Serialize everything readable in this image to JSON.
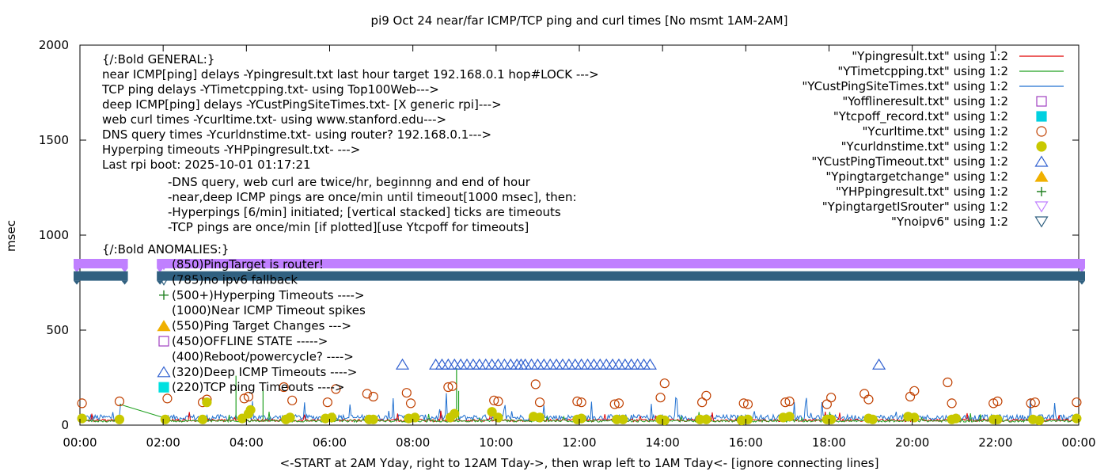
{
  "chart_data": {
    "type": "scatter",
    "title": "pi9 Oct 24  near/far ICMP/TCP ping and curl times [No msmt 1AM-2AM]",
    "xlabel": "<-START at 2AM Yday, right to 12AM Tday->, then wrap left to 1AM Tday<- [ignore connecting lines]",
    "ylabel": "msec",
    "xlim": [
      0,
      24
    ],
    "ylim": [
      0,
      2000
    ],
    "grid": false,
    "legend_position": "top-right",
    "x_ticks": [
      {
        "v": 0,
        "label": "00:00"
      },
      {
        "v": 2,
        "label": "02:00"
      },
      {
        "v": 4,
        "label": "04:00"
      },
      {
        "v": 6,
        "label": "06:00"
      },
      {
        "v": 8,
        "label": "08:00"
      },
      {
        "v": 10,
        "label": "10:00"
      },
      {
        "v": 12,
        "label": "12:00"
      },
      {
        "v": 14,
        "label": "14:00"
      },
      {
        "v": 16,
        "label": "16:00"
      },
      {
        "v": 18,
        "label": "18:00"
      },
      {
        "v": 20,
        "label": "20:00"
      },
      {
        "v": 22,
        "label": "22:00"
      },
      {
        "v": 24,
        "label": "00:00"
      }
    ],
    "y_ticks": [
      {
        "v": 0,
        "label": "0"
      },
      {
        "v": 500,
        "label": "500"
      },
      {
        "v": 1000,
        "label": "1000"
      },
      {
        "v": 1500,
        "label": "1500"
      },
      {
        "v": 2000,
        "label": "2000"
      }
    ],
    "notes_header": [
      "{/:Bold GENERAL:}",
      "near ICMP[ping] delays -Ypingresult.txt last hour target 192.168.0.1 hop#LOCK --->",
      "TCP ping delays -YTimetcpping.txt- using Top100Web--->",
      "deep ICMP[ping] delays -YCustPingSiteTimes.txt- [X generic rpi]--->",
      "web curl times -Ycurltime.txt- using www.stanford.edu--->",
      "DNS query times -Ycurldnstime.txt- using router? 192.168.0.1--->",
      "Hyperping timeouts -YHPpingresult.txt- --->",
      "Last rpi boot: 2025-10-01 01:17:21"
    ],
    "notes_indented": [
      "-DNS query, web curl are twice/hr, beginnng and end of hour",
      "-near,deep ICMP pings are once/min until timeout[1000 msec], then:",
      "  -Hyperpings [6/min] initiated; [vertical stacked] ticks are timeouts",
      "-TCP pings are once/min [if plotted][use Ytcpoff for timeouts]"
    ],
    "anomalies_header": "{/:Bold ANOMALIES:}",
    "anomalies": [
      {
        "marker": "tri-down",
        "color": "#c080ff",
        "text": "(850)PingTarget is router!"
      },
      {
        "marker": "tri-down",
        "color": "#306080",
        "text": "(785)no ipv6 fallback"
      },
      {
        "marker": "plus",
        "color": "#208020",
        "text": "(500+)Hyperping Timeouts ---->"
      },
      {
        "marker": "none",
        "color": "",
        "text": "(1000)Near ICMP Timeout spikes"
      },
      {
        "marker": "tri-up-filled",
        "color": "#f0b000",
        "text": "(550)Ping Target Changes --->"
      },
      {
        "marker": "square",
        "color": "#a040c0",
        "text": "(450)OFFLINE STATE ----->"
      },
      {
        "marker": "none",
        "color": "",
        "text": "(400)Reboot/powercycle? ---->"
      },
      {
        "marker": "tri-up",
        "color": "#3060d0",
        "text": "(320)Deep ICMP Timeouts ---->"
      },
      {
        "marker": "square-filled",
        "color": "#00e0e0",
        "text": "(220)TCP ping Timeouts ---->"
      }
    ],
    "legend": [
      {
        "label": "\"Ypingresult.txt\" using 1:2",
        "style": "line",
        "color": "#e00000"
      },
      {
        "label": "\"YTimetcpping.txt\" using 1:2",
        "style": "line",
        "color": "#20a020"
      },
      {
        "label": "\"YCustPingSiteTimes.txt\" using 1:2",
        "style": "line",
        "color": "#2070d0"
      },
      {
        "label": "\"Yofflineresult.txt\" using 1:2",
        "style": "square",
        "color": "#a040c0"
      },
      {
        "label": "\"Ytcpoff_record.txt\" using 1:2",
        "style": "square-filled",
        "color": "#00d0e0"
      },
      {
        "label": "\"Ycurltime.txt\" using 1:2",
        "style": "circle",
        "color": "#c04000"
      },
      {
        "label": "\"Ycurldnstime.txt\" using 1:2",
        "style": "circle-filled",
        "color": "#c8c800"
      },
      {
        "label": "\"YCustPingTimeout.txt\" using 1:2",
        "style": "tri-up",
        "color": "#3060d0"
      },
      {
        "label": "\"Ypingtargetchange\" using 1:2",
        "style": "tri-up-filled",
        "color": "#f0b000"
      },
      {
        "label": "\"YHPpingresult.txt\" using 1:2",
        "style": "plus",
        "color": "#208020"
      },
      {
        "label": "\"YpingtargetISrouter\" using 1:2",
        "style": "tri-down",
        "color": "#c080ff"
      },
      {
        "label": "\"Ynoipv6\" using 1:2",
        "style": "tri-down",
        "color": "#306080"
      }
    ],
    "series": [
      {
        "name": "\"YpingtargetISrouter\" using 1:2",
        "color": "#c080ff",
        "y": 850,
        "x_ranges": [
          [
            0,
            1.0
          ],
          [
            2.0,
            24
          ]
        ]
      },
      {
        "name": "\"Ynoipv6\" using 1:2",
        "color": "#306080",
        "y": 785,
        "x_ranges": [
          [
            0,
            1.0
          ],
          [
            2.0,
            24
          ]
        ]
      },
      {
        "name": "\"YCustPingTimeout.txt\" using 1:2",
        "color": "#3060d0",
        "y": 320,
        "x": [
          7.75,
          8.55,
          8.7,
          8.85,
          9.0,
          9.15,
          9.3,
          9.45,
          9.6,
          9.75,
          9.9,
          10.05,
          10.2,
          10.35,
          10.5,
          10.6,
          10.7,
          10.85,
          11.0,
          11.15,
          11.3,
          11.45,
          11.6,
          11.75,
          11.9,
          12.05,
          12.2,
          12.35,
          12.5,
          12.65,
          12.8,
          12.95,
          13.1,
          13.25,
          13.4,
          13.55,
          13.7,
          19.2
        ]
      },
      {
        "name": "\"Ycurltime.txt\" using 1:2",
        "color": "#c04000",
        "points": [
          [
            0.05,
            115
          ],
          [
            0.95,
            125
          ],
          [
            2.1,
            140
          ],
          [
            2.95,
            120
          ],
          [
            3.05,
            135
          ],
          [
            3.95,
            140
          ],
          [
            4.05,
            150
          ],
          [
            4.9,
            200
          ],
          [
            5.1,
            130
          ],
          [
            5.95,
            120
          ],
          [
            6.15,
            190
          ],
          [
            6.9,
            165
          ],
          [
            7.05,
            150
          ],
          [
            7.85,
            170
          ],
          [
            7.95,
            115
          ],
          [
            8.85,
            200
          ],
          [
            8.95,
            205
          ],
          [
            9.95,
            130
          ],
          [
            10.05,
            125
          ],
          [
            10.95,
            215
          ],
          [
            11.05,
            120
          ],
          [
            11.95,
            125
          ],
          [
            12.05,
            120
          ],
          [
            12.85,
            110
          ],
          [
            12.95,
            115
          ],
          [
            13.95,
            145
          ],
          [
            14.05,
            220
          ],
          [
            14.95,
            120
          ],
          [
            15.05,
            155
          ],
          [
            15.95,
            115
          ],
          [
            16.05,
            110
          ],
          [
            16.95,
            120
          ],
          [
            17.05,
            125
          ],
          [
            17.95,
            110
          ],
          [
            18.05,
            145
          ],
          [
            18.85,
            165
          ],
          [
            18.95,
            135
          ],
          [
            19.95,
            150
          ],
          [
            20.05,
            180
          ],
          [
            20.85,
            225
          ],
          [
            20.95,
            115
          ],
          [
            21.95,
            115
          ],
          [
            22.05,
            125
          ],
          [
            22.85,
            115
          ],
          [
            22.95,
            120
          ],
          [
            23.95,
            120
          ]
        ]
      },
      {
        "name": "\"Ycurldnstime.txt\" using 1:2",
        "color": "#c8c800",
        "points": [
          [
            0.05,
            35
          ],
          [
            0.95,
            30
          ],
          [
            2.05,
            30
          ],
          [
            2.95,
            30
          ],
          [
            3.05,
            120
          ],
          [
            3.9,
            35
          ],
          [
            4.05,
            60
          ],
          [
            4.1,
            80
          ],
          [
            4.95,
            30
          ],
          [
            5.05,
            40
          ],
          [
            5.9,
            35
          ],
          [
            6.05,
            40
          ],
          [
            6.95,
            30
          ],
          [
            7.05,
            30
          ],
          [
            7.9,
            35
          ],
          [
            8.05,
            40
          ],
          [
            8.9,
            40
          ],
          [
            9.0,
            60
          ],
          [
            9.9,
            70
          ],
          [
            10.05,
            40
          ],
          [
            10.9,
            45
          ],
          [
            11.05,
            40
          ],
          [
            11.95,
            30
          ],
          [
            12.05,
            35
          ],
          [
            12.9,
            30
          ],
          [
            13.05,
            30
          ],
          [
            13.95,
            30
          ],
          [
            14.05,
            25
          ],
          [
            14.9,
            30
          ],
          [
            15.05,
            30
          ],
          [
            15.9,
            25
          ],
          [
            16.05,
            30
          ],
          [
            16.9,
            40
          ],
          [
            17.05,
            45
          ],
          [
            17.95,
            30
          ],
          [
            18.05,
            30
          ],
          [
            18.95,
            35
          ],
          [
            19.05,
            30
          ],
          [
            19.9,
            45
          ],
          [
            20.05,
            40
          ],
          [
            20.95,
            30
          ],
          [
            21.05,
            35
          ],
          [
            21.95,
            30
          ],
          [
            22.05,
            30
          ],
          [
            22.9,
            30
          ],
          [
            23.05,
            25
          ],
          [
            23.95,
            35
          ]
        ]
      }
    ]
  }
}
